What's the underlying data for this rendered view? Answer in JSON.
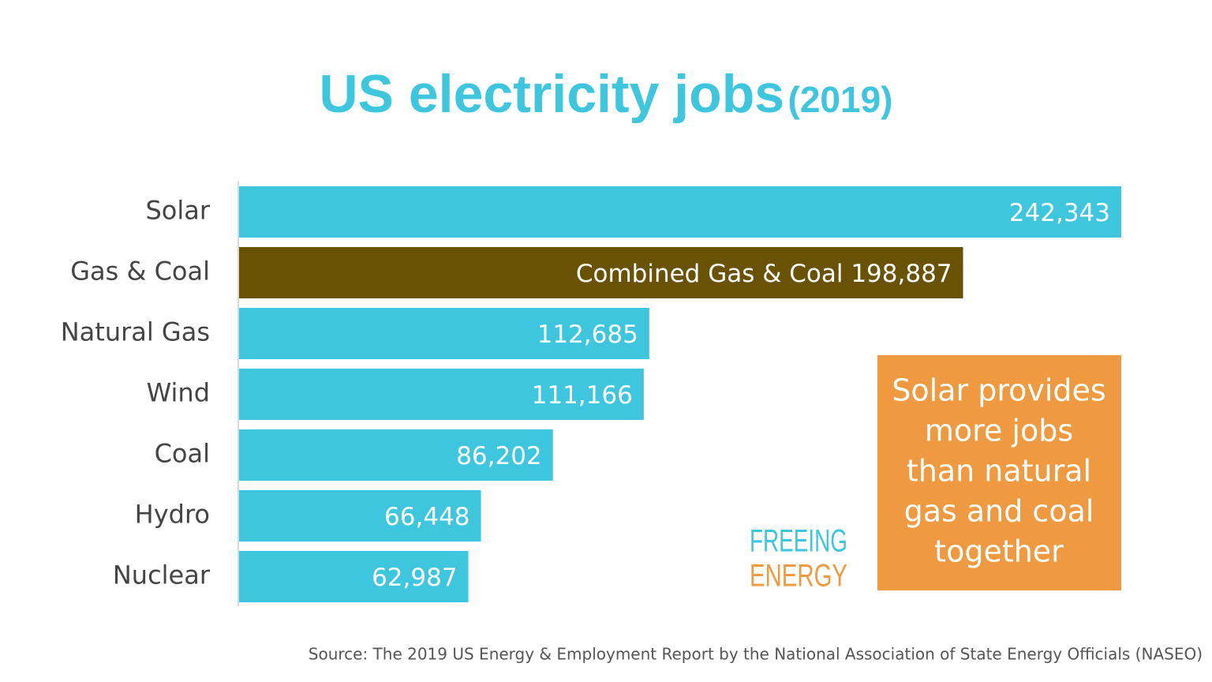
{
  "chart_data": {
    "type": "hbar",
    "title": "US electricity jobs",
    "subtitle": "(2019)",
    "categories": [
      "Solar",
      "Gas & Coal",
      "Natural Gas",
      "Wind",
      "Coal",
      "Hydro",
      "Nuclear"
    ],
    "values": [
      242343,
      198887,
      112685,
      111166,
      86202,
      66448,
      62987
    ],
    "value_labels": [
      "242,343",
      "Combined Gas & Coal 198,887",
      "112,685",
      "111,166",
      "86,202",
      "66,448",
      "62,987"
    ],
    "colors": [
      "#3ec6de",
      "#6a5204",
      "#3ec6de",
      "#3ec6de",
      "#3ec6de",
      "#3ec6de",
      "#3ec6de"
    ],
    "annotation": [
      "Solar provides",
      "more jobs",
      "than natural",
      "gas and coal",
      "together"
    ],
    "logo": [
      "FREEING",
      "ENERGY"
    ],
    "source": "Source: The 2019 US Energy & Employment Report by the National Association of State Energy Officials (NASEO)"
  }
}
